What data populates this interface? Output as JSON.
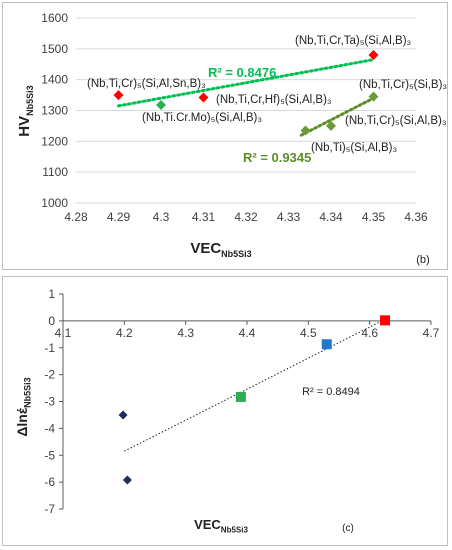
{
  "chart_data": [
    {
      "type": "scatter",
      "panel_label": "(b)",
      "xlabel": "VEC",
      "xlabel_sub": "Nb5Si3",
      "ylabel": "HV",
      "ylabel_sub": "Nb5Si3",
      "xlim": [
        4.28,
        4.36
      ],
      "ylim": [
        1000,
        1600
      ],
      "x_ticks": [
        "4.28",
        "4.29",
        "4.3",
        "4.31",
        "4.32",
        "4.33",
        "4.34",
        "4.35",
        "4.36"
      ],
      "y_ticks": [
        "1000",
        "1100",
        "1200",
        "1300",
        "1400",
        "1500",
        "1600"
      ],
      "grid": "horizontal",
      "series": [
        {
          "color": "#ff0000",
          "marker": "diamond",
          "trendline": {
            "r2": "R² = 0.8476",
            "color": "#00c050",
            "x0": 4.29,
            "y0": 1315,
            "x1": 4.35,
            "y1": 1465
          },
          "points": [
            {
              "x": 4.29,
              "y": 1350,
              "label": "(Nb,Ti,Cr)₅(Si,Al,Sn,B)₃"
            },
            {
              "x": 4.31,
              "y": 1342,
              "label": "(Nb,Ti,Cr,Hf)₅(Si,Al,B)₃"
            },
            {
              "x": 4.35,
              "y": 1480,
              "label": "(Nb,Ti,Cr,Ta)₅(Si,Al,B)₃"
            }
          ]
        },
        {
          "color": "#2eae52",
          "marker": "diamond",
          "points": [
            {
              "x": 4.3,
              "y": 1318,
              "label": "(Nb,Ti.Cr.Mo)₅(Si,Al,B)₃"
            }
          ]
        },
        {
          "color": "#6a9a3a",
          "marker": "diamond",
          "trendline": {
            "r2": "R² = 0.9345",
            "color": "#5a8f2a",
            "x0": 4.333,
            "y0": 1220,
            "x1": 4.35,
            "y1": 1340
          },
          "points": [
            {
              "x": 4.334,
              "y": 1235,
              "label": "(Nb,Ti)₅(Si,Al,B)₃"
            },
            {
              "x": 4.34,
              "y": 1250,
              "label": "(Nb,Ti,Cr)₅(Si,Al,B)₃"
            },
            {
              "x": 4.35,
              "y": 1345,
              "label": "(Nb,Ti,Cr)₅(Si,B)₃"
            }
          ]
        }
      ]
    },
    {
      "type": "scatter",
      "panel_label": "(c)",
      "xlabel": "VEC",
      "xlabel_sub": "Nb5Si3",
      "ylabel": "Δlnέ",
      "ylabel_sub": "Nb5Si3",
      "xlim": [
        4.1,
        4.7
      ],
      "ylim": [
        -7,
        1
      ],
      "x_ticks": [
        "4.1",
        "4.2",
        "4.3",
        "4.4",
        "4.5",
        "4.6",
        "4.7"
      ],
      "y_ticks": [
        "1",
        "0",
        "-1",
        "-2",
        "-3",
        "-4",
        "-5",
        "-6",
        "-7"
      ],
      "grid": "none",
      "trendline": {
        "r2": "R² = 0.8494",
        "color": "#222222",
        "x0": 4.2,
        "y0": -4.85,
        "x1": 4.62,
        "y1": 0.0
      },
      "points": [
        {
          "x": 4.198,
          "y": -3.5,
          "color": "#1f2d5c",
          "marker": "diamond"
        },
        {
          "x": 4.205,
          "y": -5.92,
          "color": "#1f2d5c",
          "marker": "diamond"
        },
        {
          "x": 4.39,
          "y": -2.83,
          "color": "#2eae52",
          "marker": "square"
        },
        {
          "x": 4.53,
          "y": -0.87,
          "color": "#1f78c8",
          "marker": "square"
        },
        {
          "x": 4.625,
          "y": 0.02,
          "color": "#ff0000",
          "marker": "square"
        }
      ]
    }
  ]
}
